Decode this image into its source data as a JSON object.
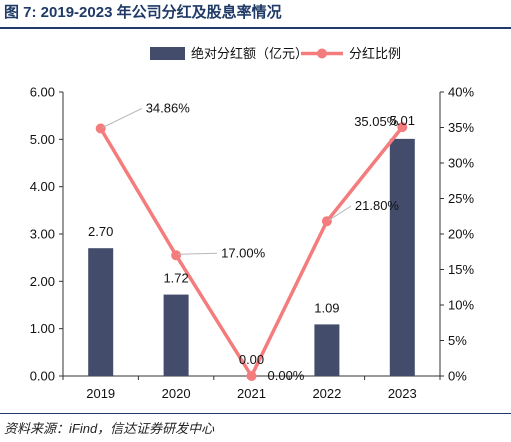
{
  "figure": {
    "title": "图 7:  2019-2023 年公司分红及股息率情况",
    "source": "资料来源：iFind，信达证券研发中心"
  },
  "colors": {
    "bar": "#434c6b",
    "line": "#f47c7c",
    "title": "#1f3a66",
    "axis": "#333333"
  },
  "chart_data": {
    "type": "bar+line",
    "categories": [
      "2019",
      "2020",
      "2021",
      "2022",
      "2023"
    ],
    "series": [
      {
        "name": "绝对分红额（亿元）",
        "type": "bar",
        "axis": "left",
        "values": [
          2.7,
          1.72,
          0.0,
          1.09,
          5.01
        ],
        "labels": [
          "2.70",
          "1.72",
          "0.00",
          "1.09",
          "5.01"
        ]
      },
      {
        "name": "分红比例",
        "type": "line",
        "axis": "right",
        "values": [
          34.86,
          17.0,
          0.0,
          21.8,
          35.05
        ],
        "labels": [
          "34.86%",
          "17.00%",
          "0.00%",
          "21.80%",
          "35.05%"
        ]
      }
    ],
    "y_left": {
      "min": 0,
      "max": 6,
      "step": 1,
      "ticks": [
        "0.00",
        "1.00",
        "2.00",
        "3.00",
        "4.00",
        "5.00",
        "6.00"
      ]
    },
    "y_right": {
      "min": 0,
      "max": 40,
      "step": 5,
      "ticks": [
        "0%",
        "5%",
        "10%",
        "15%",
        "20%",
        "25%",
        "30%",
        "35%",
        "40%"
      ]
    },
    "legend_position": "top",
    "grid": false
  }
}
